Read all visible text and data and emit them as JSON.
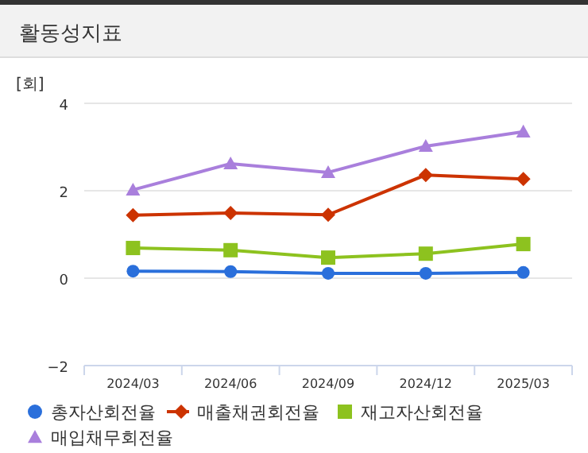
{
  "chart_data": {
    "type": "line",
    "title": "활동성지표",
    "ylabel": "[회]",
    "categories": [
      "2024/03",
      "2024/06",
      "2024/09",
      "2024/12",
      "2025/03"
    ],
    "series": [
      {
        "name": "총자산회전율",
        "color": "#2a6fdb",
        "marker": "circle",
        "values": [
          0.16,
          0.15,
          0.11,
          0.11,
          0.13
        ]
      },
      {
        "name": "매출채권회전율",
        "color": "#cc3300",
        "marker": "diamond",
        "values": [
          1.44,
          1.49,
          1.45,
          2.36,
          2.27
        ]
      },
      {
        "name": "재고자산회전율",
        "color": "#8dc21f",
        "marker": "square",
        "values": [
          0.69,
          0.64,
          0.47,
          0.56,
          0.78
        ]
      },
      {
        "name": "매입채무회전율",
        "color": "#a97fdc",
        "marker": "triangle",
        "values": [
          2.02,
          2.62,
          2.42,
          3.02,
          3.35
        ]
      }
    ],
    "ylim": [
      -2,
      4
    ],
    "yticks": [
      -2,
      0,
      2,
      4
    ],
    "grid": "y",
    "legend": "bottom"
  }
}
